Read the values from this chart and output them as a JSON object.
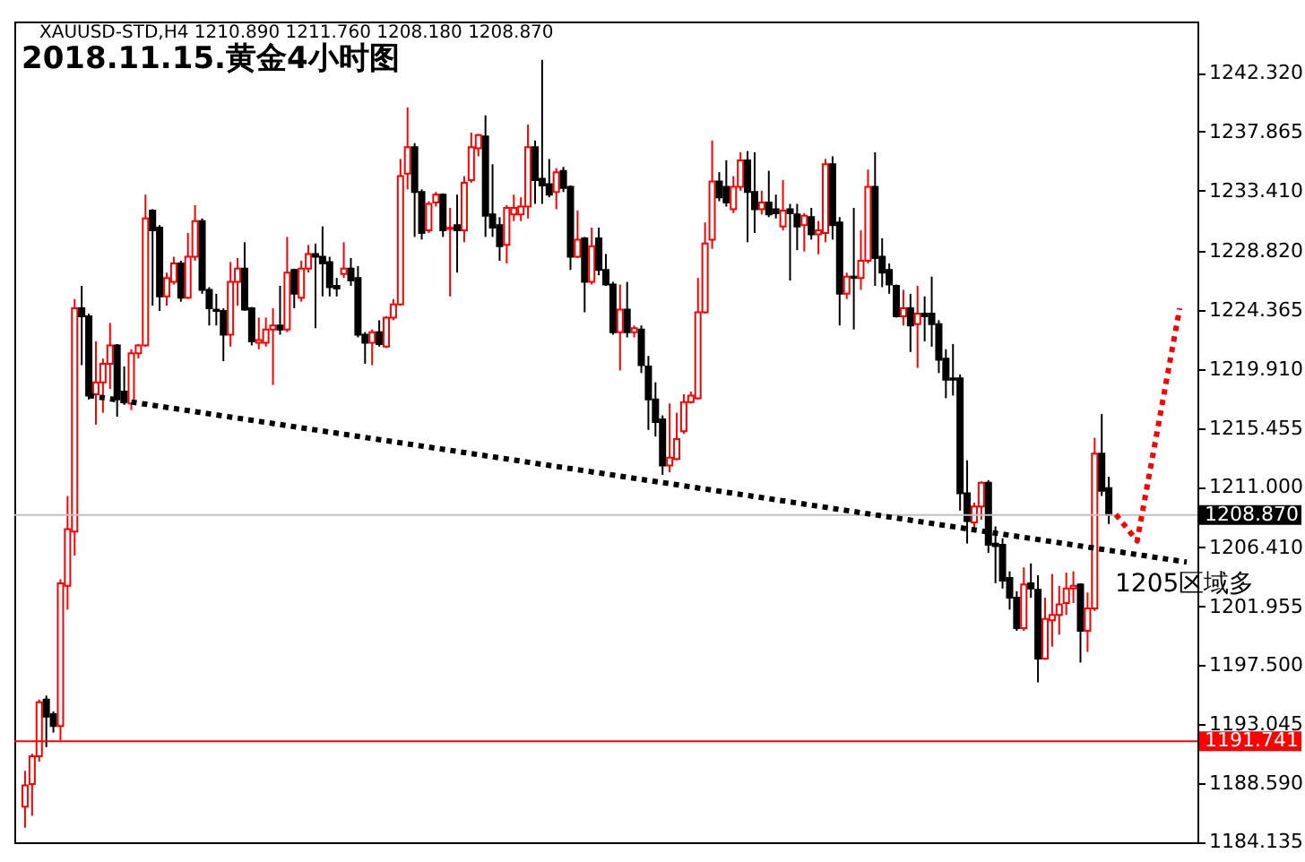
{
  "chart_data": {
    "type": "candlestick",
    "title": "2018.11.15.黄金4小时图",
    "subtitle": "XAUUSD-STD,H4  1210.890 1211.760 1208.180 1208.870",
    "annotations": [
      "1205区域多"
    ],
    "categories": [
      null,
      null,
      null,
      null,
      null,
      null,
      null,
      null,
      null,
      null,
      null,
      null,
      null,
      null,
      null,
      null,
      null,
      null,
      null,
      null,
      null,
      null,
      null,
      null,
      null,
      null,
      null,
      null,
      null,
      null,
      null,
      null,
      null,
      null,
      null,
      null,
      null,
      null,
      null,
      null,
      null,
      null,
      null,
      null,
      null,
      null,
      null,
      null,
      null,
      null,
      null,
      null,
      null,
      null,
      null,
      null,
      null,
      null,
      null,
      null,
      null,
      null,
      null,
      null,
      null,
      null,
      null,
      null,
      null,
      null,
      null,
      null,
      null,
      null,
      null,
      null,
      null,
      null,
      null,
      null,
      null,
      null,
      null,
      null,
      null,
      null,
      null,
      null,
      null,
      null,
      null,
      null,
      null,
      null,
      null,
      null,
      null,
      null,
      null,
      null,
      null,
      null,
      null,
      null,
      null,
      null,
      null,
      null,
      null,
      null,
      null,
      null,
      null,
      null,
      null,
      null,
      null,
      null,
      null,
      null,
      null,
      null,
      null,
      null,
      null,
      null,
      null,
      null,
      null,
      null,
      null,
      null,
      null,
      null,
      null,
      null,
      null,
      null,
      null,
      null,
      null,
      null,
      null,
      null,
      null,
      null,
      null,
      null,
      null,
      null,
      null,
      null,
      null,
      null,
      null,
      null,
      null,
      null,
      null,
      null,
      null,
      null,
      null,
      null,
      null
    ],
    "ohlc": [
      [
        1186.8,
        1189.5,
        1185.2,
        1188.4
      ],
      [
        1188.5,
        1190.8,
        1186.1,
        1190.6
      ],
      [
        1190.6,
        1194.9,
        1190.2,
        1194.7
      ],
      [
        1194.9,
        1195.2,
        1191.3,
        1193.6
      ],
      [
        1193.8,
        1194.0,
        1192.4,
        1192.9
      ],
      [
        1192.9,
        1204.0,
        1191.8,
        1203.7
      ],
      [
        1203.5,
        1210.3,
        1201.7,
        1207.8
      ],
      [
        1207.6,
        1225.2,
        1205.8,
        1224.5
      ],
      [
        1224.5,
        1226.2,
        1220.2,
        1223.9
      ],
      [
        1223.9,
        1224.1,
        1217.6,
        1217.9
      ],
      [
        1218.0,
        1222.0,
        1215.7,
        1218.9
      ],
      [
        1218.9,
        1220.7,
        1216.6,
        1220.3
      ],
      [
        1220.3,
        1223.4,
        1218.4,
        1221.7
      ],
      [
        1221.7,
        1221.8,
        1216.3,
        1217.6
      ],
      [
        1218.2,
        1220.1,
        1217.2,
        1217.4
      ],
      [
        1217.3,
        1221.4,
        1216.8,
        1221.1
      ],
      [
        1221.1,
        1221.8,
        1220.7,
        1221.7
      ],
      [
        1221.7,
        1233.1,
        1221.6,
        1231.3
      ],
      [
        1231.9,
        1232.0,
        1224.7,
        1230.4
      ],
      [
        1230.6,
        1230.8,
        1224.3,
        1225.4
      ],
      [
        1225.4,
        1227.2,
        1224.7,
        1226.8
      ],
      [
        1226.5,
        1228.4,
        1226.3,
        1227.9
      ],
      [
        1227.9,
        1228.1,
        1225.0,
        1225.3
      ],
      [
        1225.3,
        1230.2,
        1225.2,
        1228.4
      ],
      [
        1228.4,
        1232.3,
        1228.1,
        1231.1
      ],
      [
        1231.1,
        1231.3,
        1225.6,
        1225.9
      ],
      [
        1225.9,
        1226.1,
        1223.2,
        1224.5
      ],
      [
        1224.4,
        1225.6,
        1223.2,
        1224.3
      ],
      [
        1224.3,
        1224.5,
        1220.5,
        1222.5
      ],
      [
        1222.5,
        1228.0,
        1221.6,
        1226.5
      ],
      [
        1226.5,
        1228.3,
        1224.7,
        1227.5
      ],
      [
        1227.5,
        1229.5,
        1224.3,
        1224.4
      ],
      [
        1224.5,
        1224.6,
        1221.7,
        1222.0
      ],
      [
        1221.9,
        1223.8,
        1221.4,
        1222.1
      ],
      [
        1221.9,
        1223.8,
        1221.6,
        1222.9
      ],
      [
        1222.9,
        1224.5,
        1218.7,
        1223.2
      ],
      [
        1223.2,
        1226.2,
        1222.5,
        1222.9
      ],
      [
        1222.9,
        1229.9,
        1222.7,
        1227.2
      ],
      [
        1227.4,
        1227.5,
        1224.5,
        1225.6
      ],
      [
        1225.3,
        1228.1,
        1225.0,
        1227.5
      ],
      [
        1227.5,
        1229.3,
        1227.2,
        1228.6
      ],
      [
        1228.6,
        1229.4,
        1223.0,
        1228.4
      ],
      [
        1228.4,
        1230.7,
        1225.4,
        1227.9
      ],
      [
        1228.0,
        1228.4,
        1225.4,
        1226.1
      ],
      [
        1226.2,
        1226.8,
        1225.4,
        1226.0
      ],
      [
        1227.1,
        1229.5,
        1226.8,
        1227.5
      ],
      [
        1227.5,
        1228.3,
        1226.2,
        1226.6
      ],
      [
        1226.8,
        1227.7,
        1222.3,
        1222.5
      ],
      [
        1222.5,
        1222.7,
        1220.3,
        1221.9
      ],
      [
        1221.9,
        1222.9,
        1220.2,
        1222.7
      ],
      [
        1222.7,
        1223.6,
        1221.6,
        1221.8
      ],
      [
        1221.6,
        1223.9,
        1221.5,
        1223.8
      ],
      [
        1223.8,
        1225.2,
        1223.6,
        1224.8
      ],
      [
        1224.8,
        1235.8,
        1224.7,
        1234.5
      ],
      [
        1234.7,
        1239.7,
        1233.5,
        1236.7
      ],
      [
        1236.7,
        1237.0,
        1229.9,
        1233.3
      ],
      [
        1233.3,
        1233.5,
        1229.7,
        1230.2
      ],
      [
        1230.4,
        1232.6,
        1230.2,
        1232.4
      ],
      [
        1232.5,
        1233.3,
        1232.2,
        1233.1
      ],
      [
        1233.1,
        1233.2,
        1229.9,
        1230.4
      ],
      [
        1230.5,
        1232.1,
        1225.4,
        1230.6
      ],
      [
        1230.8,
        1233.1,
        1227.2,
        1230.4
      ],
      [
        1230.4,
        1234.5,
        1229.5,
        1234.0
      ],
      [
        1234.2,
        1237.8,
        1234.0,
        1236.7
      ],
      [
        1236.6,
        1237.7,
        1236.0,
        1237.6
      ],
      [
        1237.5,
        1239.1,
        1229.9,
        1231.5
      ],
      [
        1231.6,
        1235.4,
        1229.9,
        1230.6
      ],
      [
        1230.8,
        1231.4,
        1228.1,
        1229.2
      ],
      [
        1229.3,
        1232.3,
        1227.9,
        1232.1
      ],
      [
        1231.6,
        1233.1,
        1231.1,
        1232.1
      ],
      [
        1231.6,
        1232.9,
        1231.1,
        1232.2
      ],
      [
        1232.2,
        1238.4,
        1231.3,
        1236.7
      ],
      [
        1236.7,
        1237.2,
        1232.4,
        1234.2
      ],
      [
        1234.3,
        1243.3,
        1232.4,
        1233.8
      ],
      [
        1233.9,
        1235.8,
        1232.9,
        1233.1
      ],
      [
        1233.3,
        1235.1,
        1232.0,
        1234.8
      ],
      [
        1234.9,
        1235.2,
        1233.3,
        1233.6
      ],
      [
        1233.7,
        1233.8,
        1227.4,
        1228.4
      ],
      [
        1228.4,
        1231.9,
        1228.3,
        1229.7
      ],
      [
        1229.8,
        1229.9,
        1224.2,
        1226.5
      ],
      [
        1226.5,
        1230.6,
        1226.3,
        1229.2
      ],
      [
        1229.8,
        1230.6,
        1227.0,
        1227.4
      ],
      [
        1227.4,
        1228.6,
        1226.2,
        1226.3
      ],
      [
        1226.3,
        1226.5,
        1222.5,
        1222.7
      ],
      [
        1222.7,
        1226.3,
        1219.8,
        1224.4
      ],
      [
        1224.4,
        1226.5,
        1222.3,
        1222.7
      ],
      [
        1222.7,
        1223.2,
        1222.3,
        1223.0
      ],
      [
        1222.9,
        1223.2,
        1219.6,
        1220.2
      ],
      [
        1220.1,
        1220.9,
        1215.3,
        1217.6
      ],
      [
        1217.6,
        1218.9,
        1214.8,
        1215.9
      ],
      [
        1216.1,
        1216.4,
        1211.9,
        1212.6
      ],
      [
        1212.6,
        1217.3,
        1212.1,
        1213.2
      ],
      [
        1213.1,
        1216.6,
        1213.0,
        1214.6
      ],
      [
        1215.2,
        1218.0,
        1215.0,
        1217.4
      ],
      [
        1217.4,
        1218.2,
        1217.3,
        1217.9
      ],
      [
        1217.7,
        1226.8,
        1217.6,
        1224.2
      ],
      [
        1224.2,
        1231.0,
        1224.1,
        1229.4
      ],
      [
        1229.7,
        1237.2,
        1229.0,
        1234.1
      ],
      [
        1234.1,
        1234.8,
        1232.6,
        1232.9
      ],
      [
        1233.7,
        1235.7,
        1232.2,
        1232.5
      ],
      [
        1232.0,
        1234.5,
        1231.7,
        1233.7
      ],
      [
        1233.7,
        1236.3,
        1233.4,
        1235.7
      ],
      [
        1235.7,
        1236.4,
        1229.5,
        1233.3
      ],
      [
        1233.3,
        1236.3,
        1230.2,
        1232.0
      ],
      [
        1232.0,
        1233.4,
        1231.6,
        1232.5
      ],
      [
        1232.5,
        1234.9,
        1231.4,
        1231.6
      ],
      [
        1232.0,
        1233.1,
        1231.3,
        1231.7
      ],
      [
        1230.7,
        1234.2,
        1230.4,
        1231.9
      ],
      [
        1232.0,
        1232.4,
        1226.6,
        1231.7
      ],
      [
        1231.6,
        1232.4,
        1228.9,
        1230.7
      ],
      [
        1230.8,
        1231.7,
        1228.8,
        1231.5
      ],
      [
        1231.4,
        1232.1,
        1229.7,
        1230.1
      ],
      [
        1230.1,
        1231.1,
        1228.6,
        1230.4
      ],
      [
        1230.2,
        1235.8,
        1229.5,
        1235.4
      ],
      [
        1235.4,
        1236.0,
        1229.7,
        1230.8
      ],
      [
        1231.0,
        1231.4,
        1223.2,
        1225.6
      ],
      [
        1225.6,
        1227.2,
        1225.2,
        1226.9
      ],
      [
        1226.9,
        1232.1,
        1222.9,
        1226.8
      ],
      [
        1226.8,
        1230.4,
        1225.9,
        1228.1
      ],
      [
        1228.1,
        1235.0,
        1227.9,
        1233.7
      ],
      [
        1233.7,
        1236.3,
        1226.2,
        1228.3
      ],
      [
        1228.4,
        1229.8,
        1226.1,
        1227.2
      ],
      [
        1227.4,
        1227.9,
        1225.6,
        1226.3
      ],
      [
        1226.2,
        1226.3,
        1223.8,
        1223.9
      ],
      [
        1223.9,
        1225.9,
        1223.2,
        1224.5
      ],
      [
        1224.5,
        1225.6,
        1221.2,
        1223.2
      ],
      [
        1223.3,
        1226.2,
        1220.0,
        1224.1
      ],
      [
        1224.1,
        1225.4,
        1222.0,
        1223.9
      ],
      [
        1224.1,
        1226.9,
        1221.6,
        1223.3
      ],
      [
        1223.3,
        1223.6,
        1219.6,
        1220.6
      ],
      [
        1220.7,
        1221.4,
        1217.7,
        1219.1
      ],
      [
        1219.2,
        1221.8,
        1217.9,
        1219.1
      ],
      [
        1219.2,
        1219.5,
        1209.2,
        1210.5
      ],
      [
        1210.5,
        1213.0,
        1206.7,
        1208.4
      ],
      [
        1208.3,
        1209.8,
        1207.8,
        1209.5
      ],
      [
        1209.5,
        1211.4,
        1208.5,
        1211.3
      ],
      [
        1211.3,
        1211.5,
        1206.0,
        1206.6
      ],
      [
        1206.7,
        1208.0,
        1203.7,
        1206.5
      ],
      [
        1206.6,
        1207.1,
        1203.3,
        1203.9
      ],
      [
        1204.1,
        1204.6,
        1201.7,
        1202.6
      ],
      [
        1202.6,
        1203.1,
        1200.1,
        1200.3
      ],
      [
        1200.3,
        1204.9,
        1200.1,
        1203.6
      ],
      [
        1203.7,
        1205.2,
        1202.6,
        1203.3
      ],
      [
        1203.2,
        1204.3,
        1196.2,
        1198.0
      ],
      [
        1198.0,
        1202.6,
        1197.9,
        1201.0
      ],
      [
        1200.9,
        1204.4,
        1198.9,
        1201.3
      ],
      [
        1201.3,
        1203.5,
        1199.8,
        1202.1
      ],
      [
        1202.2,
        1204.5,
        1201.3,
        1203.3
      ],
      [
        1203.3,
        1204.6,
        1202.2,
        1203.5
      ],
      [
        1203.6,
        1203.7,
        1197.7,
        1200.1
      ],
      [
        1200.1,
        1203.0,
        1198.5,
        1201.8
      ],
      [
        1201.8,
        1214.7,
        1201.6,
        1213.5
      ],
      [
        1213.5,
        1216.5,
        1210.3,
        1210.7
      ],
      [
        1210.89,
        1211.76,
        1208.18,
        1208.87
      ],
      null,
      null,
      null,
      null,
      null,
      null,
      null,
      null,
      null,
      null,
      null
    ],
    "colors": [
      "#ff0000",
      "#ff0000",
      "#ff0000",
      "#000000",
      "#000000",
      "#ff0000",
      "#ff0000",
      "#ff0000",
      "#000000",
      "#000000",
      "#ff0000",
      "#ff0000",
      "#ff0000",
      "#000000",
      "#000000",
      "#ff0000",
      "#ff0000",
      "#ff0000",
      "#000000",
      "#000000",
      "#ff0000",
      "#ff0000",
      "#000000",
      "#ff0000",
      "#ff0000",
      "#000000",
      "#000000",
      "#000000",
      "#000000",
      "#ff0000",
      "#ff0000",
      "#000000",
      "#000000",
      "#ff0000",
      "#ff0000",
      "#ff0000",
      "#000000",
      "#ff0000",
      "#000000",
      "#ff0000",
      "#ff0000",
      "#000000",
      "#000000",
      "#000000",
      "#000000",
      "#ff0000",
      "#000000",
      "#000000",
      "#000000",
      "#ff0000",
      "#000000",
      "#ff0000",
      "#ff0000",
      "#ff0000",
      "#ff0000",
      "#000000",
      "#000000",
      "#ff0000",
      "#ff0000",
      "#000000",
      "#ff0000",
      "#000000",
      "#ff0000",
      "#ff0000",
      "#ff0000",
      "#000000",
      "#000000",
      "#000000",
      "#ff0000",
      "#ff0000",
      "#ff0000",
      "#ff0000",
      "#000000",
      "#000000",
      "#000000",
      "#ff0000",
      "#000000",
      "#000000",
      "#ff0000",
      "#000000",
      "#ff0000",
      "#000000",
      "#000000",
      "#000000",
      "#ff0000",
      "#000000",
      "#ff0000",
      "#000000",
      "#000000",
      "#000000",
      "#000000",
      "#ff0000",
      "#ff0000",
      "#ff0000",
      "#ff0000",
      "#ff0000",
      "#ff0000",
      "#ff0000",
      "#000000",
      "#000000",
      "#ff0000",
      "#ff0000",
      "#000000",
      "#000000",
      "#ff0000",
      "#000000",
      "#000000",
      "#ff0000",
      "#000000",
      "#000000",
      "#ff0000",
      "#000000",
      "#ff0000",
      "#ff0000",
      "#000000",
      "#000000",
      "#ff0000",
      "#000000",
      "#ff0000",
      "#ff0000",
      "#000000",
      "#000000",
      "#000000",
      "#000000",
      "#ff0000",
      "#000000",
      "#ff0000",
      "#000000",
      "#000000",
      "#000000",
      "#000000",
      "#000000",
      "#000000",
      "#000000",
      "#ff0000",
      "#ff0000",
      "#000000",
      "#000000",
      "#000000",
      "#000000",
      "#000000",
      "#ff0000",
      "#000000",
      "#000000",
      "#ff0000",
      "#ff0000",
      "#ff0000",
      "#ff0000",
      "#ff0000",
      "#000000",
      "#ff0000",
      "#ff0000",
      "#000000",
      "#000000",
      null,
      null,
      null,
      null,
      null,
      null,
      null,
      null,
      null,
      null,
      null
    ],
    "series": [
      {
        "type": "line",
        "color": "#000000",
        "line_style": "dotted",
        "values": [
          null,
          null,
          null,
          null,
          null,
          null,
          null,
          null,
          null,
          1217.9,
          null,
          null,
          null,
          null,
          null,
          null,
          null,
          null,
          null,
          null,
          null,
          null,
          null,
          null,
          null,
          null,
          null,
          null,
          null,
          null,
          null,
          null,
          null,
          null,
          null,
          null,
          null,
          null,
          null,
          null,
          null,
          null,
          null,
          null,
          null,
          null,
          null,
          null,
          null,
          null,
          null,
          null,
          null,
          null,
          null,
          null,
          null,
          null,
          null,
          null,
          null,
          null,
          null,
          null,
          null,
          null,
          null,
          null,
          null,
          null,
          null,
          null,
          null,
          null,
          null,
          null,
          null,
          null,
          null,
          null,
          null,
          null,
          null,
          null,
          null,
          null,
          null,
          null,
          null,
          null,
          null,
          null,
          null,
          null,
          null,
          null,
          null,
          null,
          null,
          null,
          null,
          null,
          null,
          null,
          null,
          null,
          null,
          null,
          null,
          null,
          null,
          null,
          null,
          null,
          null,
          null,
          null,
          null,
          null,
          null,
          null,
          null,
          null,
          null,
          null,
          null,
          null,
          null,
          null,
          null,
          null,
          null,
          null,
          null,
          null,
          null,
          null,
          null,
          null,
          null,
          null,
          null,
          null,
          null,
          null,
          null,
          null,
          null,
          null,
          null,
          null,
          null,
          null,
          null,
          null,
          null,
          null,
          null,
          null,
          null,
          null,
          null,
          null,
          null,
          1205.3
        ]
      },
      {
        "type": "line",
        "color": "#ff0000",
        "line_style": "dotted",
        "values": [
          null,
          null,
          null,
          null,
          null,
          null,
          null,
          null,
          null,
          null,
          null,
          null,
          null,
          null,
          null,
          null,
          null,
          null,
          null,
          null,
          null,
          null,
          null,
          null,
          null,
          null,
          null,
          null,
          null,
          null,
          null,
          null,
          null,
          null,
          null,
          null,
          null,
          null,
          null,
          null,
          null,
          null,
          null,
          null,
          null,
          null,
          null,
          null,
          null,
          null,
          null,
          null,
          null,
          null,
          null,
          null,
          null,
          null,
          null,
          null,
          null,
          null,
          null,
          null,
          null,
          null,
          null,
          null,
          null,
          null,
          null,
          null,
          null,
          null,
          null,
          null,
          null,
          null,
          null,
          null,
          null,
          null,
          null,
          null,
          null,
          null,
          null,
          null,
          null,
          null,
          null,
          null,
          null,
          null,
          null,
          null,
          null,
          null,
          null,
          null,
          null,
          null,
          null,
          null,
          null,
          null,
          null,
          null,
          null,
          null,
          null,
          null,
          null,
          null,
          null,
          null,
          null,
          null,
          null,
          null,
          null,
          null,
          null,
          null,
          null,
          null,
          null,
          null,
          null,
          null,
          null,
          null,
          null,
          null,
          null,
          null,
          null,
          null,
          null,
          null,
          null,
          null,
          null,
          null,
          null,
          null,
          null,
          null,
          null,
          null,
          null,
          null,
          null,
          null,
          1208.9,
          null,
          null,
          1206.9,
          null,
          null,
          null,
          null,
          null,
          1224.5,
          null
        ]
      }
    ],
    "ylim": [
      1184.1,
      1246.2
    ],
    "yticks": [
      {
        "value": 1242.32,
        "label": "1242.320"
      },
      1237.865,
      {
        "value": 1233.41,
        "label": "1233.410"
      },
      {
        "value": 1228.82,
        "label": "1228.820"
      },
      1224.365,
      {
        "value": 1219.91,
        "label": "1219.910"
      },
      1215.455,
      {
        "value": 1211,
        "label": "1211.000"
      },
      {
        "value": 1206.41,
        "label": "1206.410"
      },
      1201.955,
      {
        "value": 1197.5,
        "label": "1197.500"
      },
      1193.045,
      {
        "value": 1188.59,
        "label": "1188.590"
      },
      1184.135
    ],
    "ref_lines": [
      {
        "axis": "y",
        "value": 1208.87,
        "label": "1208.870",
        "color": "#c0c0c0"
      },
      {
        "axis": "y",
        "value": 1191.741,
        "label": "1191.741",
        "color": "#ff0000"
      }
    ],
    "tick_labels": "y",
    "grid": false
  }
}
